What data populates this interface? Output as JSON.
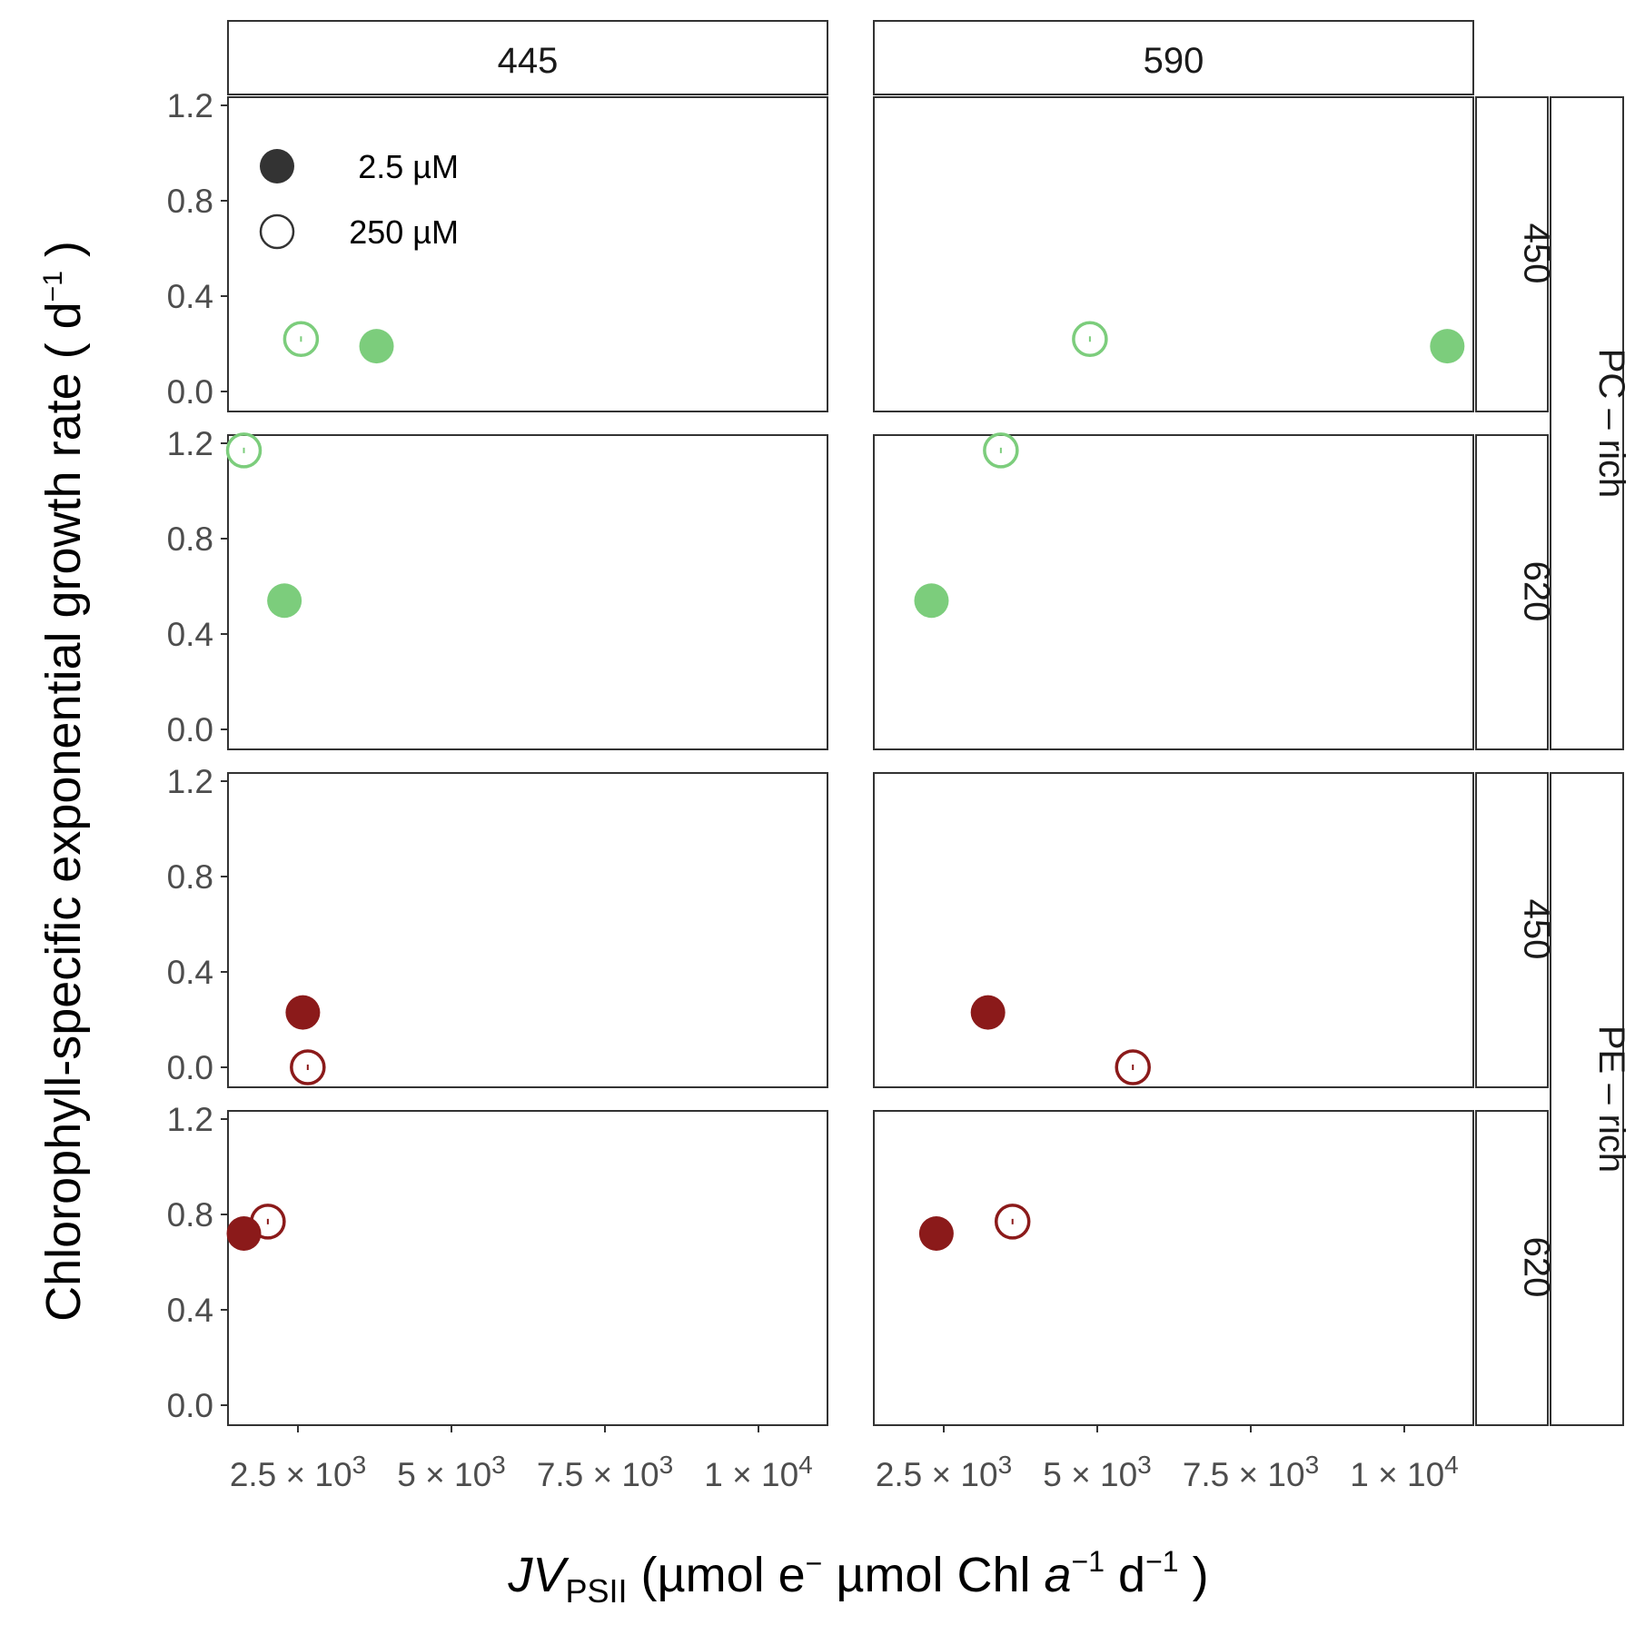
{
  "chart_data": {
    "type": "scatter",
    "facet_cols": [
      "445",
      "590"
    ],
    "facet_rows": [
      {
        "group": "PC – rich",
        "label": "450"
      },
      {
        "group": "PC – rich",
        "label": "620"
      },
      {
        "group": "PE – rich",
        "label": "450"
      },
      {
        "group": "PE – rich",
        "label": "620"
      }
    ],
    "row_groups": [
      "PC – rich",
      "PE – rich"
    ],
    "xlim": [
      1200,
      12000
    ],
    "ylim": [
      -0.08,
      1.25
    ],
    "x_ticks": [
      2500,
      5000,
      7500,
      10000
    ],
    "x_tick_labels": [
      "2.5 × 10",
      "5 × 10",
      "7.5 × 10",
      "1 × 10"
    ],
    "x_tick_exponents": [
      "3",
      "3",
      "3",
      "4"
    ],
    "y_ticks": [
      0.0,
      0.4,
      0.8,
      1.2
    ],
    "y_tick_labels": [
      "0.0",
      "0.4",
      "0.8",
      "1.2"
    ],
    "xlabel": {
      "var": "JV",
      "sub": "PSII",
      "open": " (µmol e",
      "minus": "−",
      "chl": "  µmol Chl ",
      "italic_a": "a",
      "neg_one": "−1",
      "d": "  d",
      "close": " )"
    },
    "ylabel": {
      "main": "Chlorophyll-specific exponential growth rate  ( d",
      "sup": "−1",
      "close": " )"
    },
    "legend": {
      "placement": "top-left",
      "items": [
        {
          "label": "2.5 µM",
          "fill": "solid"
        },
        {
          "label": "250 µM",
          "fill": "open"
        }
      ]
    },
    "colors": {
      "PC – rich": "#7ccd7c",
      "PE – rich": "#8b1a1a",
      "legend": "#333333"
    },
    "points": [
      {
        "row": 0,
        "col": 0,
        "x": 2550,
        "y": 0.22,
        "conc": "250 µM"
      },
      {
        "row": 0,
        "col": 0,
        "x": 3780,
        "y": 0.19,
        "conc": "2.5 µM"
      },
      {
        "row": 0,
        "col": 1,
        "x": 4880,
        "y": 0.22,
        "conc": "250 µM"
      },
      {
        "row": 0,
        "col": 1,
        "x": 10700,
        "y": 0.19,
        "conc": "2.5 µM"
      },
      {
        "row": 1,
        "col": 0,
        "x": 1620,
        "y": 1.17,
        "conc": "250 µM"
      },
      {
        "row": 1,
        "col": 0,
        "x": 2280,
        "y": 0.54,
        "conc": "2.5 µM"
      },
      {
        "row": 1,
        "col": 1,
        "x": 3430,
        "y": 1.17,
        "conc": "250 µM"
      },
      {
        "row": 1,
        "col": 1,
        "x": 2300,
        "y": 0.54,
        "conc": "2.5 µM"
      },
      {
        "row": 2,
        "col": 0,
        "x": 2580,
        "y": 0.23,
        "conc": "2.5 µM"
      },
      {
        "row": 2,
        "col": 0,
        "x": 2660,
        "y": 0.0,
        "conc": "250 µM"
      },
      {
        "row": 2,
        "col": 1,
        "x": 3220,
        "y": 0.23,
        "conc": "2.5 µM"
      },
      {
        "row": 2,
        "col": 1,
        "x": 5580,
        "y": 0.0,
        "conc": "250 µM"
      },
      {
        "row": 3,
        "col": 0,
        "x": 1620,
        "y": 0.72,
        "conc": "2.5 µM"
      },
      {
        "row": 3,
        "col": 0,
        "x": 2010,
        "y": 0.77,
        "conc": "250 µM"
      },
      {
        "row": 3,
        "col": 1,
        "x": 2380,
        "y": 0.72,
        "conc": "2.5 µM"
      },
      {
        "row": 3,
        "col": 1,
        "x": 3620,
        "y": 0.77,
        "conc": "250 µM"
      }
    ]
  }
}
